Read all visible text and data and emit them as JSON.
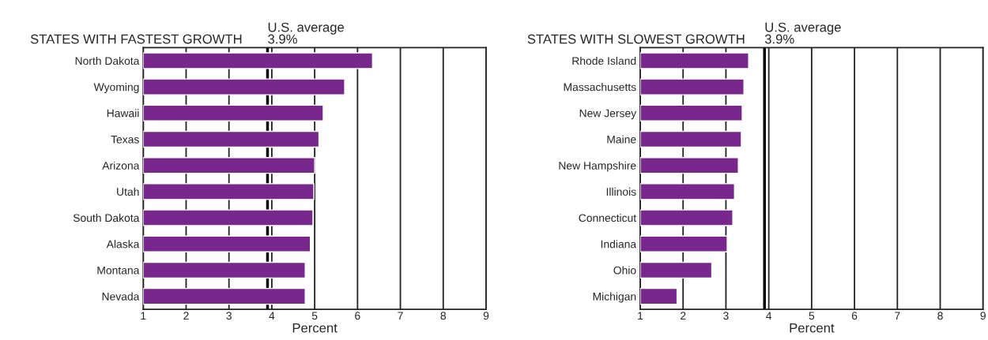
{
  "chart_data": [
    {
      "type": "bar",
      "orientation": "horizontal",
      "title": "STATES WITH FASTEST GROWTH",
      "xlabel": "Percent",
      "categories": [
        "North Dakota",
        "Wyoming",
        "Hawaii",
        "Texas",
        "Arizona",
        "Utah",
        "South Dakota",
        "Alaska",
        "Montana",
        "Nevada"
      ],
      "values": [
        6.35,
        5.7,
        5.2,
        5.1,
        5.0,
        4.98,
        4.96,
        4.9,
        4.78,
        4.78
      ],
      "color": "#78288c",
      "xlim": [
        1,
        9
      ],
      "xticks": [
        1,
        2,
        3,
        4,
        5,
        6,
        7,
        8,
        9
      ],
      "grid": "x",
      "ref_lines": [
        {
          "axis": "x",
          "value": 3.9,
          "label": "U.S. average\n3.9%",
          "color": "#000000"
        }
      ]
    },
    {
      "type": "bar",
      "orientation": "horizontal",
      "title": "STATES WITH SLOWEST GROWTH",
      "xlabel": "Percent",
      "categories": [
        "Rhode Island",
        "Massachusetts",
        "New Jersey",
        "Maine",
        "New Hampshire",
        "Illinois",
        "Connecticut",
        "Indiana",
        "Ohio",
        "Michigan"
      ],
      "values": [
        3.53,
        3.42,
        3.38,
        3.36,
        3.29,
        3.2,
        3.16,
        3.03,
        2.67,
        1.86
      ],
      "color": "#78288c",
      "xlim": [
        1,
        9
      ],
      "xticks": [
        1,
        2,
        3,
        4,
        5,
        6,
        7,
        8,
        9
      ],
      "grid": "x",
      "ref_lines": [
        {
          "axis": "x",
          "value": 3.9,
          "label": "U.S. average\n3.9%",
          "color": "#000000"
        }
      ]
    }
  ]
}
